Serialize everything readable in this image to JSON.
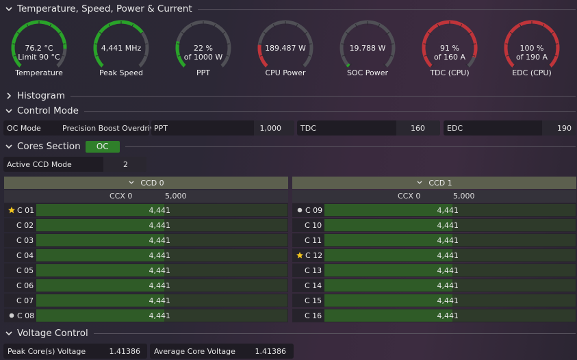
{
  "sections": {
    "temp": "Temperature, Speed, Power & Current",
    "histogram": "Histogram",
    "control": "Control Mode",
    "cores": "Cores Section",
    "voltage": "Voltage Control"
  },
  "colors": {
    "green": "#29a329",
    "red": "#c0343a",
    "track": "#505056",
    "bar_fill": "#2f5b27"
  },
  "gauges": [
    {
      "line1": "76.2 °C",
      "line2": "Limit 90 °C",
      "label": "Temperature",
      "level": 0.84,
      "color": "green"
    },
    {
      "line1": "4,441  MHz",
      "line2": "",
      "label": "Peak Speed",
      "level": 0.7,
      "color": "green"
    },
    {
      "line1": "22 %",
      "line2": "of 1000 W",
      "label": "PPT",
      "level": 0.22,
      "color": "green"
    },
    {
      "line1": "189.487 W",
      "line2": "",
      "label": "CPU Power",
      "level": 0.19,
      "color": "red"
    },
    {
      "line1": "19.788 W",
      "line2": "",
      "label": "SOC Power",
      "level": 0.02,
      "color": "green"
    },
    {
      "line1": "91 %",
      "line2": "of 160 A",
      "label": "TDC (CPU)",
      "level": 0.91,
      "color": "red"
    },
    {
      "line1": "100 %",
      "line2": "of 190 A",
      "label": "EDC (CPU)",
      "level": 1.0,
      "color": "red"
    }
  ],
  "control": {
    "oc_mode_label": "OC Mode",
    "oc_mode_value": "Precision Boost Overdrive",
    "ppt_label": "PPT",
    "ppt_value": "1,000",
    "tdc_label": "TDC",
    "tdc_value": "160",
    "edc_label": "EDC",
    "edc_value": "190"
  },
  "cores_badge": "OC",
  "active_ccd": {
    "label": "Active CCD Mode",
    "value": "2"
  },
  "ccd": [
    {
      "title": "CCD 0",
      "ccx": "CCX 0",
      "ccx_value": "5,000",
      "cores": [
        {
          "name": "C 01",
          "value": "4,441",
          "marker": "star"
        },
        {
          "name": "C 02",
          "value": "4,441",
          "marker": ""
        },
        {
          "name": "C 03",
          "value": "4,441",
          "marker": ""
        },
        {
          "name": "C 04",
          "value": "4,441",
          "marker": ""
        },
        {
          "name": "C 05",
          "value": "4,441",
          "marker": ""
        },
        {
          "name": "C 06",
          "value": "4,441",
          "marker": ""
        },
        {
          "name": "C 07",
          "value": "4,441",
          "marker": ""
        },
        {
          "name": "C 08",
          "value": "4,441",
          "marker": "dot"
        }
      ]
    },
    {
      "title": "CCD 1",
      "ccx": "CCX 0",
      "ccx_value": "5,000",
      "cores": [
        {
          "name": "C 09",
          "value": "4,441",
          "marker": "dot"
        },
        {
          "name": "C 10",
          "value": "4,441",
          "marker": ""
        },
        {
          "name": "C 11",
          "value": "4,441",
          "marker": ""
        },
        {
          "name": "C 12",
          "value": "4,441",
          "marker": "star"
        },
        {
          "name": "C 13",
          "value": "4,441",
          "marker": ""
        },
        {
          "name": "C 14",
          "value": "4,441",
          "marker": ""
        },
        {
          "name": "C 15",
          "value": "4,441",
          "marker": ""
        },
        {
          "name": "C 16",
          "value": "4,441",
          "marker": ""
        }
      ]
    }
  ],
  "core_bar_level": 0.51,
  "voltage": {
    "peak_label": "Peak Core(s) Voltage",
    "peak_value": "1.41386",
    "avg_label": "Average Core Voltage",
    "avg_value": "1.41386"
  }
}
